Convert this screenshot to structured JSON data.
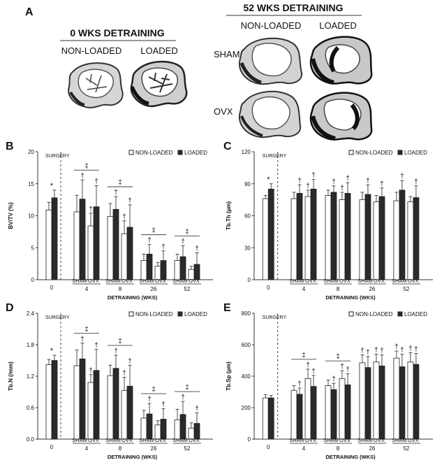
{
  "panelA": {
    "letter": "A",
    "left_title": "0 WKS DETRAINING",
    "right_title": "52 WKS DETRAINING",
    "col_nonloaded": "NON-LOADED",
    "col_loaded": "LOADED",
    "row_sham": "SHAM",
    "row_ovx": "OVX"
  },
  "legend": {
    "nonloaded": "NON-LOADED",
    "loaded": "LOADED"
  },
  "colors": {
    "nonloaded": "#ffffff",
    "loaded": "#2a2a2a",
    "axis": "#333333",
    "bone": "#3a3a3a"
  },
  "chart_data": [
    {
      "type": "bar",
      "letter": "B",
      "ylabel": "BV/TV (%)",
      "xlabel": "DETRAINING (WKS)",
      "ylim": [
        0,
        20
      ],
      "yticks": [
        "0",
        "5",
        "10",
        "15",
        "20"
      ],
      "surgery_label": "SURGERY",
      "categories": [
        "0",
        "4",
        "8",
        "26",
        "52"
      ],
      "group_labels": [
        "SHAM",
        "OVX"
      ],
      "baseline": {
        "nonloaded": 10.9,
        "loaded": 12.8,
        "err_n": 1.2,
        "err_l": 1.2,
        "mark": "*"
      },
      "groups": [
        {
          "sham": [
            10.6,
            12.6
          ],
          "ovx": [
            8.4,
            11.4
          ],
          "err": [
            2.6,
            3.0,
            2.0,
            3.3
          ],
          "marks": [
            "†",
            "†",
            "†"
          ],
          "sig": "‡"
        },
        {
          "sham": [
            9.9,
            11.0
          ],
          "ovx": [
            7.2,
            8.2
          ],
          "err": [
            2.0,
            2.0,
            2.0,
            3.5
          ],
          "marks": [
            "†",
            "†",
            "†"
          ],
          "sig": "‡"
        },
        {
          "sham": [
            3.0,
            4.0
          ],
          "ovx": [
            2.1,
            3.0
          ],
          "err": [
            1.0,
            1.5,
            0.6,
            1.5
          ],
          "marks": [
            "†",
            "†"
          ],
          "sig": "‡"
        },
        {
          "sham": [
            3.0,
            3.6
          ],
          "ovx": [
            1.6,
            2.4
          ],
          "err": [
            1.0,
            1.7,
            0.5,
            1.8
          ],
          "marks": [
            "†",
            "†"
          ],
          "sig": "‡"
        }
      ]
    },
    {
      "type": "bar",
      "letter": "C",
      "ylabel": "Tb.Th (µm)",
      "xlabel": "DETRAINING (WKS)",
      "ylim": [
        0,
        120
      ],
      "yticks": [
        "0",
        "30",
        "60",
        "90",
        "120"
      ],
      "surgery_label": "SURGERY",
      "categories": [
        "0",
        "4",
        "8",
        "26",
        "52"
      ],
      "group_labels": [
        "SHAM",
        "OVX"
      ],
      "baseline": {
        "nonloaded": 76,
        "loaded": 85,
        "err_n": 3,
        "err_l": 5,
        "mark": "*"
      },
      "groups": [
        {
          "sham": [
            76,
            81
          ],
          "ovx": [
            78,
            85
          ],
          "err": [
            6,
            8,
            6,
            9
          ],
          "marks": [
            "†",
            "†",
            "†"
          ],
          "sig": ""
        },
        {
          "sham": [
            79,
            82
          ],
          "ovx": [
            75,
            81
          ],
          "err": [
            5,
            6,
            7,
            10
          ],
          "marks": [
            "†",
            "†",
            "†"
          ],
          "sig": ""
        },
        {
          "sham": [
            75,
            80
          ],
          "ovx": [
            73,
            78
          ],
          "err": [
            7,
            9,
            6,
            8
          ],
          "marks": [
            "†",
            "†"
          ],
          "sig": ""
        },
        {
          "sham": [
            74,
            84
          ],
          "ovx": [
            73,
            77
          ],
          "err": [
            8,
            9,
            5,
            11
          ],
          "marks": [
            "†",
            "†"
          ],
          "sig": ""
        }
      ]
    },
    {
      "type": "bar",
      "letter": "D",
      "ylabel": "Tb.N (/mm)",
      "xlabel": "DETRAINING (WKS)",
      "ylim": [
        0,
        2.4
      ],
      "yticks": [
        "0.0",
        "0.6",
        "1.2",
        "1.8",
        "2.4"
      ],
      "surgery_label": "SURGERY",
      "categories": [
        "0",
        "4",
        "8",
        "26",
        "52"
      ],
      "group_labels": [
        "SHAM",
        "OVX"
      ],
      "baseline": {
        "nonloaded": 1.42,
        "loaded": 1.5,
        "err_n": 0.1,
        "err_l": 0.1,
        "mark": "*"
      },
      "groups": [
        {
          "sham": [
            1.4,
            1.53
          ],
          "ovx": [
            1.08,
            1.31
          ],
          "err": [
            0.3,
            0.3,
            0.15,
            0.4
          ],
          "marks": [
            "†",
            "†",
            "†"
          ],
          "sig": "‡"
        },
        {
          "sham": [
            1.21,
            1.35
          ],
          "ovx": [
            0.93,
            1.01
          ],
          "err": [
            0.2,
            0.25,
            0.25,
            0.4
          ],
          "marks": [
            "†",
            "†",
            "†"
          ],
          "sig": "‡"
        },
        {
          "sham": [
            0.4,
            0.48
          ],
          "ovx": [
            0.27,
            0.38
          ],
          "err": [
            0.15,
            0.2,
            0.08,
            0.2
          ],
          "marks": [
            "†",
            "†"
          ],
          "sig": "‡"
        },
        {
          "sham": [
            0.37,
            0.47
          ],
          "ovx": [
            0.21,
            0.3
          ],
          "err": [
            0.2,
            0.25,
            0.1,
            0.2
          ],
          "marks": [
            "†",
            "†"
          ],
          "sig": "‡"
        }
      ]
    },
    {
      "type": "bar",
      "letter": "E",
      "ylabel": "Tb.Sp (µm)",
      "xlabel": "DETRAINING (WKS)",
      "ylim": [
        0,
        800
      ],
      "yticks": [
        "0",
        "200",
        "400",
        "600",
        "800"
      ],
      "surgery_label": "SURGERY",
      "categories": [
        "0",
        "4",
        "8",
        "26",
        "52"
      ],
      "group_labels": [
        "SHAM",
        "OVX"
      ],
      "baseline": {
        "nonloaded": 262,
        "loaded": 262,
        "err_n": 20,
        "err_l": 15,
        "mark": ""
      },
      "groups": [
        {
          "sham": [
            310,
            285
          ],
          "ovx": [
            385,
            335
          ],
          "err": [
            30,
            40,
            60,
            70
          ],
          "marks": [
            "†",
            "†",
            "†"
          ],
          "sig": "‡"
        },
        {
          "sham": [
            340,
            315
          ],
          "ovx": [
            385,
            345
          ],
          "err": [
            35,
            40,
            50,
            70
          ],
          "marks": [
            "†",
            "†",
            "†"
          ],
          "sig": "‡"
        },
        {
          "sham": [
            485,
            455
          ],
          "ovx": [
            490,
            465
          ],
          "err": [
            50,
            70,
            50,
            70
          ],
          "marks": [
            "†",
            "†",
            "†",
            "†"
          ],
          "sig": ""
        },
        {
          "sham": [
            515,
            460
          ],
          "ovx": [
            490,
            475
          ],
          "err": [
            45,
            80,
            60,
            70
          ],
          "marks": [
            "†",
            "†",
            "†",
            "†"
          ],
          "sig": ""
        }
      ]
    }
  ]
}
